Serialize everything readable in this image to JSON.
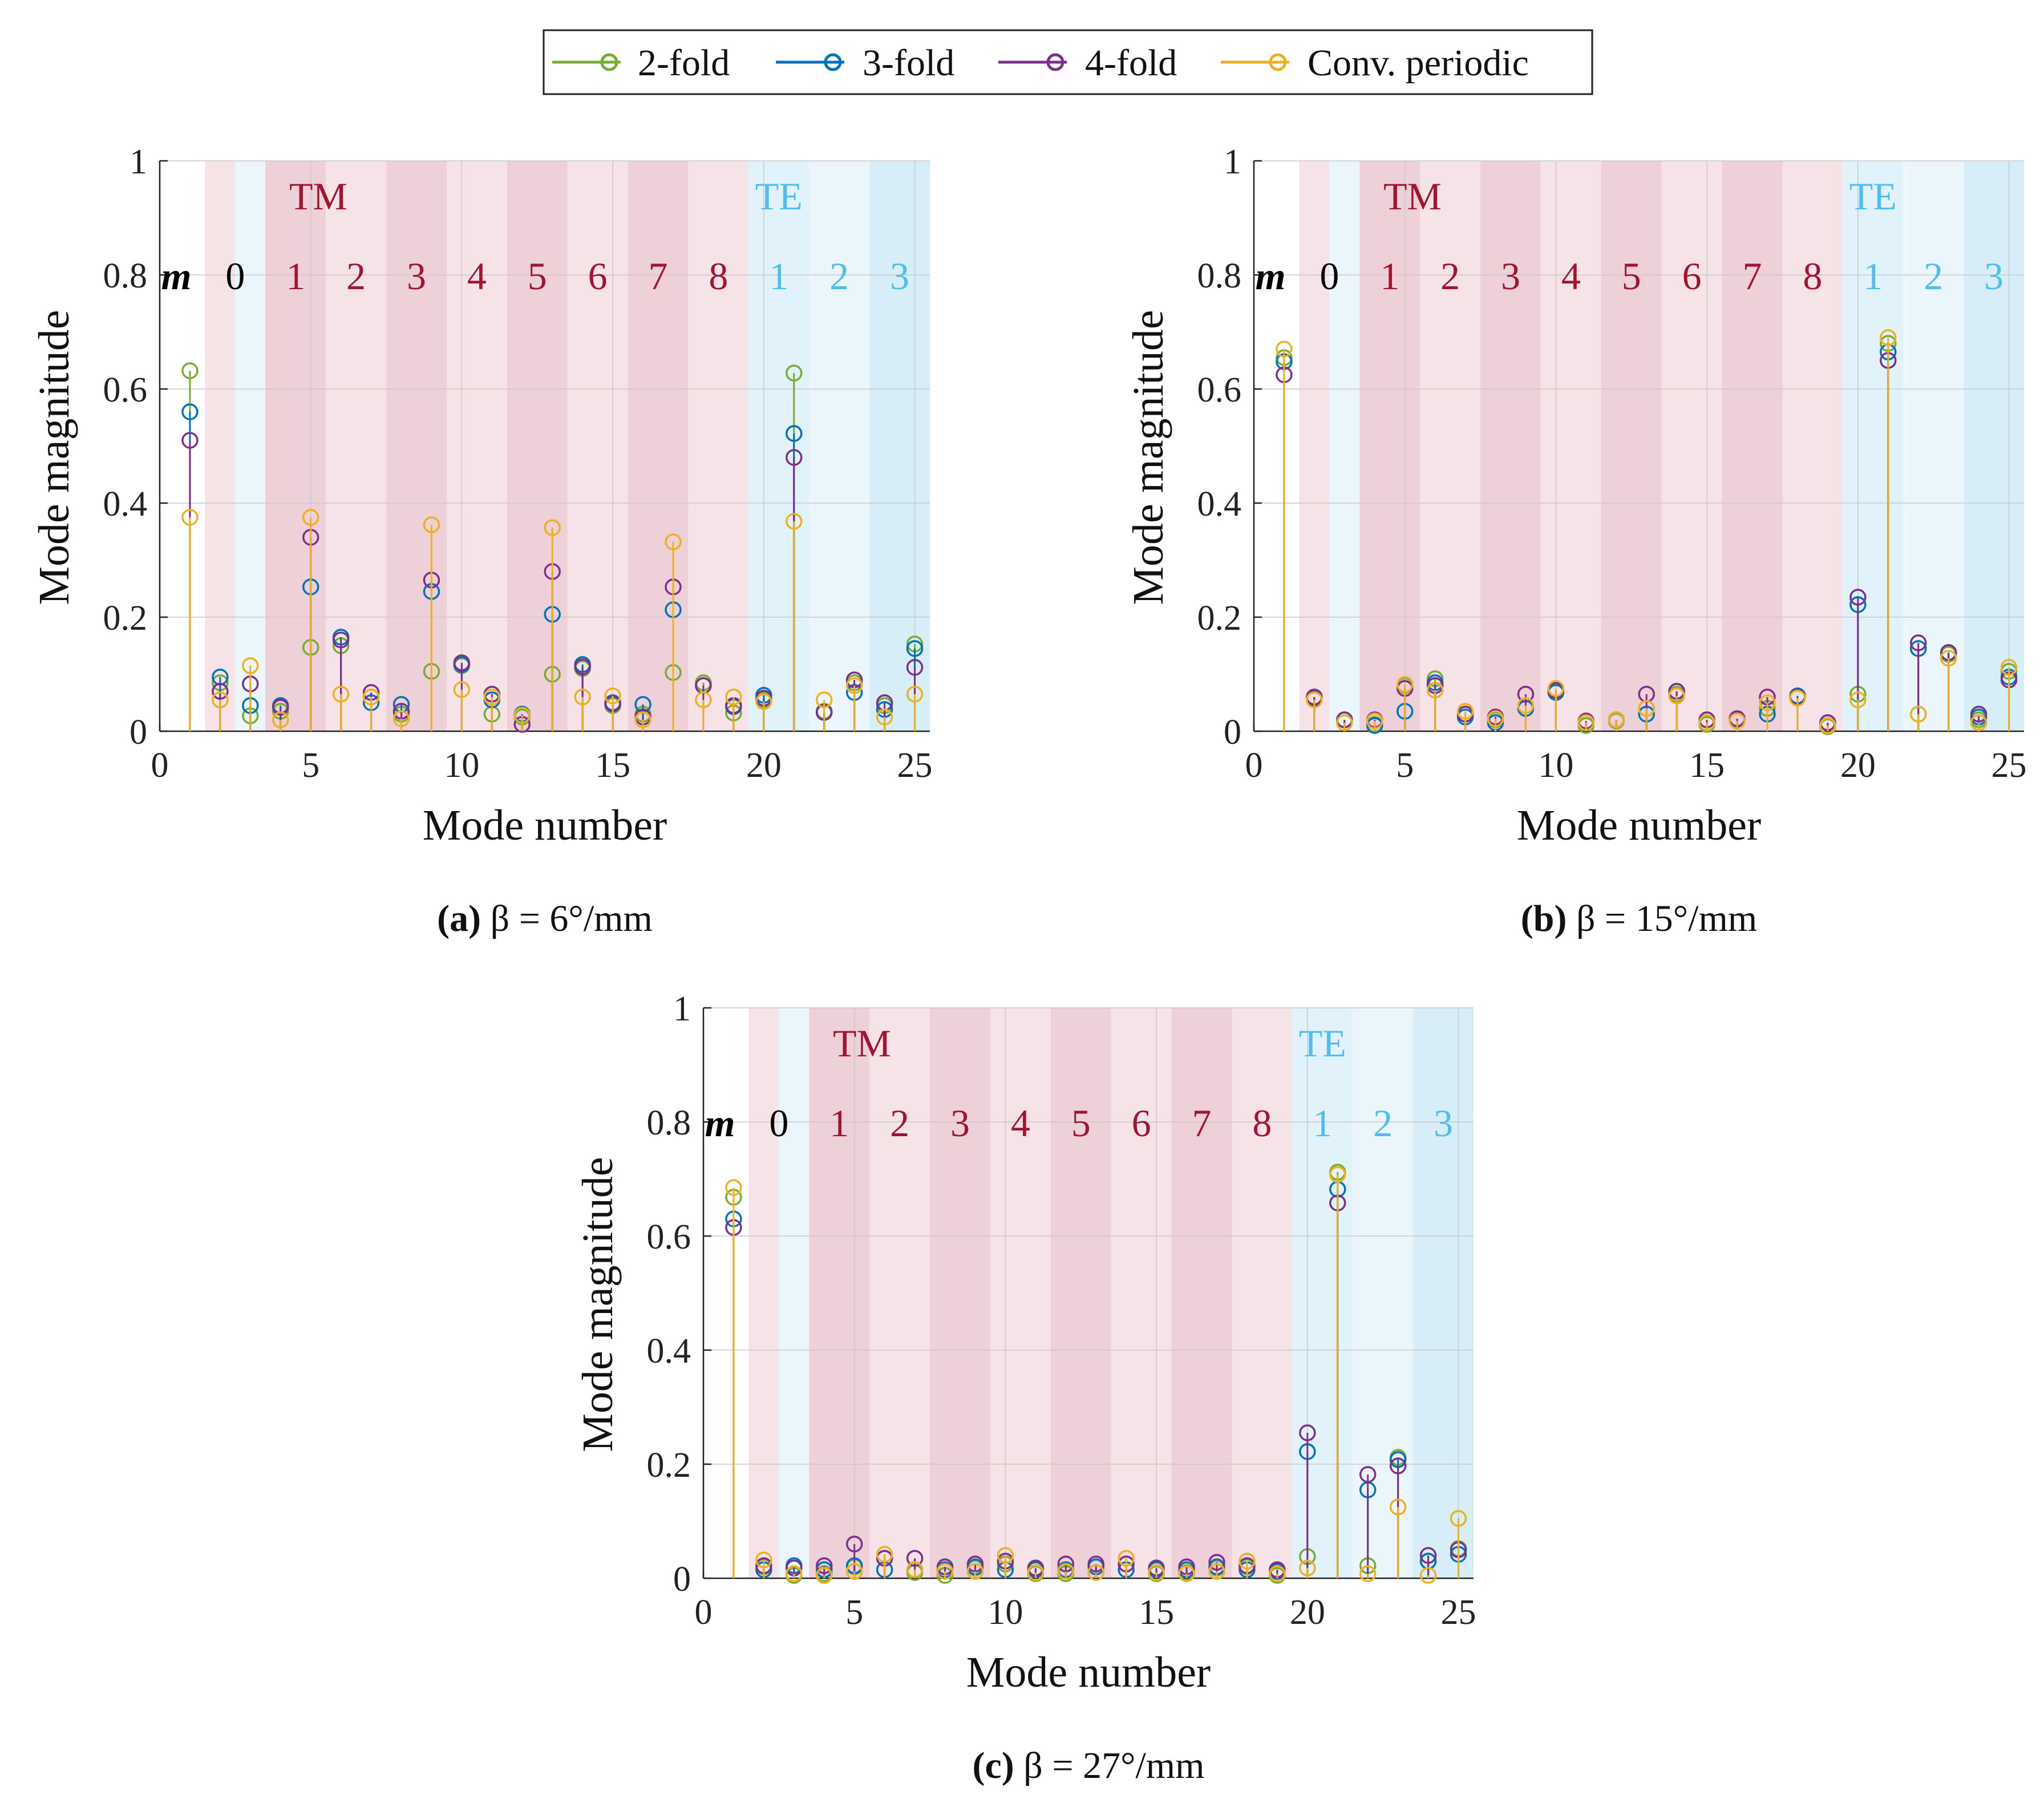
{
  "colors": {
    "2-fold": "#77AC30",
    "3-fold": "#0072BD",
    "4-fold": "#7E2F8E",
    "Conv. periodic": "#EDB120",
    "tm_label": "#A2142F",
    "te_label": "#4DBEEE",
    "m_label": "#000000"
  },
  "legend": {
    "entries": [
      "2-fold",
      "3-fold",
      "4-fold",
      "Conv. periodic"
    ],
    "placement": "top-center"
  },
  "chart_data": [
    {
      "type": "stem",
      "panel": "a",
      "caption_label": "(a)",
      "caption_text": "β = 6°/mm",
      "xlabel": "Mode number",
      "ylabel": "Mode magnitude",
      "xlim": [
        0,
        25.5
      ],
      "ylim": [
        0,
        1
      ],
      "xticks": [
        "0",
        "5",
        "10",
        "15",
        "20",
        "25"
      ],
      "yticks": [
        "0",
        "0.2",
        "0.4",
        "0.6",
        "0.8",
        "1"
      ],
      "group_labels": {
        "tm": "TM",
        "te": "TE",
        "m": "m"
      },
      "m_labels": [
        "0",
        "1",
        "2",
        "3",
        "4",
        "5",
        "6",
        "7",
        "8",
        "1",
        "2",
        "3"
      ],
      "x": [
        1,
        2,
        3,
        4,
        5,
        6,
        7,
        8,
        9,
        10,
        11,
        12,
        13,
        14,
        15,
        16,
        17,
        18,
        19,
        20,
        21,
        22,
        23,
        24,
        25
      ],
      "series": [
        {
          "name": "2-fold",
          "values": [
            0.632,
            0.085,
            0.027,
            0.035,
            0.147,
            0.15,
            0.06,
            0.03,
            0.105,
            0.115,
            0.03,
            0.025,
            0.1,
            0.11,
            0.045,
            0.03,
            0.103,
            0.085,
            0.032,
            0.055,
            0.628,
            0.035,
            0.085,
            0.045,
            0.153
          ]
        },
        {
          "name": "3-fold",
          "values": [
            0.56,
            0.095,
            0.045,
            0.045,
            0.253,
            0.165,
            0.05,
            0.047,
            0.245,
            0.117,
            0.055,
            0.03,
            0.205,
            0.117,
            0.05,
            0.047,
            0.213,
            0.08,
            0.043,
            0.063,
            0.522,
            0.033,
            0.068,
            0.038,
            0.145
          ]
        },
        {
          "name": "4-fold",
          "values": [
            0.51,
            0.07,
            0.083,
            0.042,
            0.34,
            0.16,
            0.068,
            0.035,
            0.265,
            0.12,
            0.065,
            0.012,
            0.28,
            0.113,
            0.048,
            0.025,
            0.253,
            0.08,
            0.045,
            0.058,
            0.48,
            0.033,
            0.09,
            0.05,
            0.112
          ]
        },
        {
          "name": "Conv. periodic",
          "values": [
            0.375,
            0.055,
            0.115,
            0.02,
            0.375,
            0.065,
            0.06,
            0.022,
            0.362,
            0.073,
            0.06,
            0.028,
            0.357,
            0.06,
            0.062,
            0.02,
            0.332,
            0.055,
            0.06,
            0.052,
            0.368,
            0.055,
            0.08,
            0.025,
            0.065
          ]
        }
      ]
    },
    {
      "type": "stem",
      "panel": "b",
      "caption_label": "(b)",
      "caption_text": "β = 15°/mm",
      "xlabel": "Mode number",
      "ylabel": "Mode magnitude",
      "xlim": [
        0,
        25.5
      ],
      "ylim": [
        0,
        1
      ],
      "xticks": [
        "0",
        "5",
        "10",
        "15",
        "20",
        "25"
      ],
      "yticks": [
        "0",
        "0.2",
        "0.4",
        "0.6",
        "0.8",
        "1"
      ],
      "group_labels": {
        "tm": "TM",
        "te": "TE",
        "m": "m"
      },
      "m_labels": [
        "0",
        "1",
        "2",
        "3",
        "4",
        "5",
        "6",
        "7",
        "8",
        "1",
        "2",
        "3"
      ],
      "x": [
        1,
        2,
        3,
        4,
        5,
        6,
        7,
        8,
        9,
        10,
        11,
        12,
        13,
        14,
        15,
        16,
        17,
        18,
        19,
        20,
        21,
        22,
        23,
        24,
        25
      ],
      "series": [
        {
          "name": "2-fold",
          "values": [
            0.655,
            0.06,
            0.015,
            0.012,
            0.08,
            0.092,
            0.03,
            0.02,
            0.04,
            0.07,
            0.01,
            0.018,
            0.04,
            0.065,
            0.012,
            0.02,
            0.04,
            0.06,
            0.008,
            0.065,
            0.68,
            0.03,
            0.135,
            0.02,
            0.105
          ]
        },
        {
          "name": "3-fold",
          "values": [
            0.648,
            0.058,
            0.02,
            0.01,
            0.035,
            0.085,
            0.025,
            0.015,
            0.04,
            0.068,
            0.015,
            0.02,
            0.03,
            0.07,
            0.015,
            0.02,
            0.03,
            0.062,
            0.015,
            0.222,
            0.665,
            0.145,
            0.138,
            0.025,
            0.095
          ]
        },
        {
          "name": "4-fold",
          "values": [
            0.625,
            0.06,
            0.02,
            0.02,
            0.075,
            0.08,
            0.03,
            0.025,
            0.065,
            0.072,
            0.018,
            0.02,
            0.065,
            0.07,
            0.02,
            0.022,
            0.06,
            0.06,
            0.015,
            0.235,
            0.65,
            0.155,
            0.138,
            0.03,
            0.09
          ]
        },
        {
          "name": "Conv. periodic",
          "values": [
            0.67,
            0.055,
            0.015,
            0.018,
            0.082,
            0.072,
            0.035,
            0.022,
            0.045,
            0.075,
            0.015,
            0.02,
            0.04,
            0.062,
            0.015,
            0.018,
            0.05,
            0.058,
            0.01,
            0.055,
            0.69,
            0.03,
            0.128,
            0.015,
            0.112
          ]
        }
      ]
    },
    {
      "type": "stem",
      "panel": "c",
      "caption_label": "(c)",
      "caption_text": "β = 27°/mm",
      "xlabel": "Mode number",
      "ylabel": "Mode magnitude",
      "xlim": [
        0,
        25.5
      ],
      "ylim": [
        0,
        1
      ],
      "xticks": [
        "0",
        "5",
        "10",
        "15",
        "20",
        "25"
      ],
      "yticks": [
        "0",
        "0.2",
        "0.4",
        "0.6",
        "0.8",
        "1"
      ],
      "group_labels": {
        "tm": "TM",
        "te": "TE",
        "m": "m"
      },
      "m_labels": [
        "0",
        "1",
        "2",
        "3",
        "4",
        "5",
        "6",
        "7",
        "8",
        "1",
        "2",
        "3"
      ],
      "x": [
        1,
        2,
        3,
        4,
        5,
        6,
        7,
        8,
        9,
        10,
        11,
        12,
        13,
        14,
        15,
        16,
        17,
        18,
        19,
        20,
        21,
        22,
        23,
        24,
        25
      ],
      "series": [
        {
          "name": "2-fold",
          "values": [
            0.668,
            0.02,
            0.005,
            0.008,
            0.02,
            0.035,
            0.01,
            0.005,
            0.018,
            0.025,
            0.008,
            0.008,
            0.02,
            0.025,
            0.008,
            0.01,
            0.018,
            0.02,
            0.005,
            0.038,
            0.712,
            0.022,
            0.212,
            0.03,
            0.052
          ]
        },
        {
          "name": "3-fold",
          "values": [
            0.63,
            0.015,
            0.022,
            0.015,
            0.022,
            0.015,
            0.015,
            0.015,
            0.02,
            0.015,
            0.015,
            0.015,
            0.02,
            0.015,
            0.015,
            0.015,
            0.02,
            0.015,
            0.012,
            0.222,
            0.682,
            0.155,
            0.208,
            0.03,
            0.042
          ]
        },
        {
          "name": "4-fold",
          "values": [
            0.615,
            0.022,
            0.018,
            0.022,
            0.06,
            0.035,
            0.035,
            0.02,
            0.025,
            0.03,
            0.018,
            0.025,
            0.025,
            0.025,
            0.018,
            0.02,
            0.028,
            0.022,
            0.015,
            0.255,
            0.658,
            0.182,
            0.197,
            0.04,
            0.05
          ]
        },
        {
          "name": "Conv. periodic",
          "values": [
            0.685,
            0.032,
            0.008,
            0.005,
            0.012,
            0.042,
            0.015,
            0.012,
            0.012,
            0.04,
            0.01,
            0.012,
            0.01,
            0.035,
            0.01,
            0.008,
            0.012,
            0.03,
            0.008,
            0.018,
            0.708,
            0.008,
            0.125,
            0.005,
            0.105
          ]
        }
      ]
    }
  ]
}
